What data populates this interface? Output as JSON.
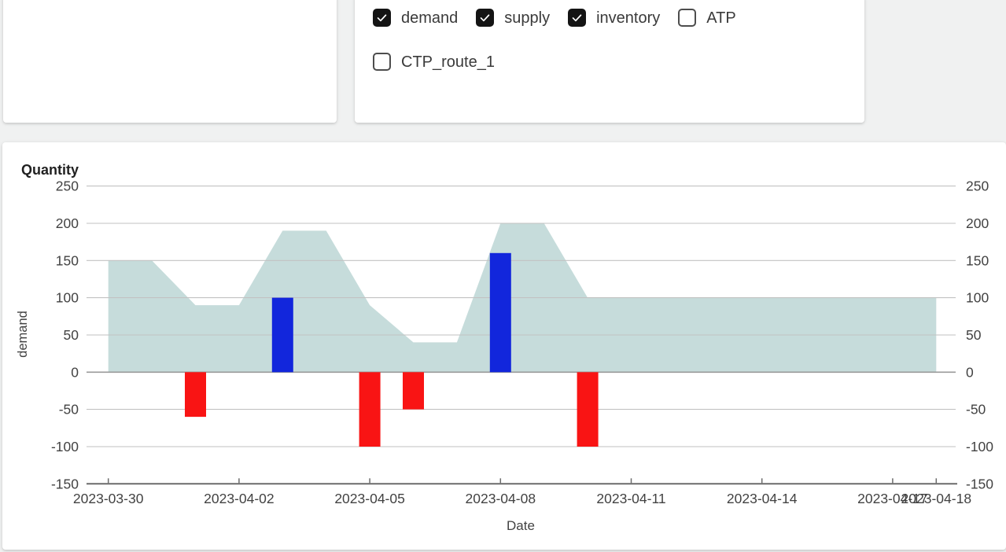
{
  "controls": {
    "items": [
      {
        "label": "demand",
        "checked": true
      },
      {
        "label": "supply",
        "checked": true
      },
      {
        "label": "inventory",
        "checked": true
      },
      {
        "label": "ATP",
        "checked": false
      },
      {
        "label": "CTP_route_1",
        "checked": false
      }
    ],
    "row1_count": 4
  },
  "chart_data": {
    "type": "area+bar combo",
    "title": "Quantity",
    "xlabel": "Date",
    "ylabel_left": "demand",
    "ylim": [
      -150,
      250
    ],
    "ytick_labels": [
      "250",
      "200",
      "150",
      "100",
      "50",
      "0",
      "-50",
      "-100",
      "-150"
    ],
    "ytick_values": [
      250,
      200,
      150,
      100,
      50,
      0,
      -50,
      -100,
      -150
    ],
    "x_start_date": "2023-03-30",
    "x_end_date": "2023-04-18",
    "xtick_labels": [
      "2023-03-30",
      "2023-04-02",
      "2023-04-05",
      "2023-04-08",
      "2023-04-11",
      "2023-04-14",
      "2023-04-17",
      "2023-04-18"
    ],
    "legend_position": "none",
    "grid": true,
    "series": [
      {
        "name": "inventory",
        "type": "area",
        "color": "#c6dcdb",
        "points": [
          {
            "date": "2023-03-30",
            "value": 150
          },
          {
            "date": "2023-03-31",
            "value": 150
          },
          {
            "date": "2023-04-01",
            "value": 90
          },
          {
            "date": "2023-04-02",
            "value": 90
          },
          {
            "date": "2023-04-03",
            "value": 190
          },
          {
            "date": "2023-04-04",
            "value": 190
          },
          {
            "date": "2023-04-05",
            "value": 90
          },
          {
            "date": "2023-04-06",
            "value": 40
          },
          {
            "date": "2023-04-07",
            "value": 40
          },
          {
            "date": "2023-04-08",
            "value": 200
          },
          {
            "date": "2023-04-09",
            "value": 200
          },
          {
            "date": "2023-04-10",
            "value": 100
          },
          {
            "date": "2023-04-18",
            "value": 100
          }
        ]
      },
      {
        "name": "supply",
        "type": "bar",
        "color": "#1226dc",
        "points": [
          {
            "date": "2023-04-03",
            "value": 100
          },
          {
            "date": "2023-04-08",
            "value": 160
          }
        ]
      },
      {
        "name": "demand",
        "type": "bar",
        "color": "#f91414",
        "points": [
          {
            "date": "2023-04-01",
            "value": -60
          },
          {
            "date": "2023-04-05",
            "value": -100
          },
          {
            "date": "2023-04-06",
            "value": -50
          },
          {
            "date": "2023-04-10",
            "value": -100
          }
        ]
      }
    ],
    "colors": {
      "gridline": "#c2c2c2",
      "zero_line": "#9a9a9a",
      "axis_line": "#6b6b6b",
      "tick_text": "#424242",
      "title_text": "#212121"
    }
  }
}
